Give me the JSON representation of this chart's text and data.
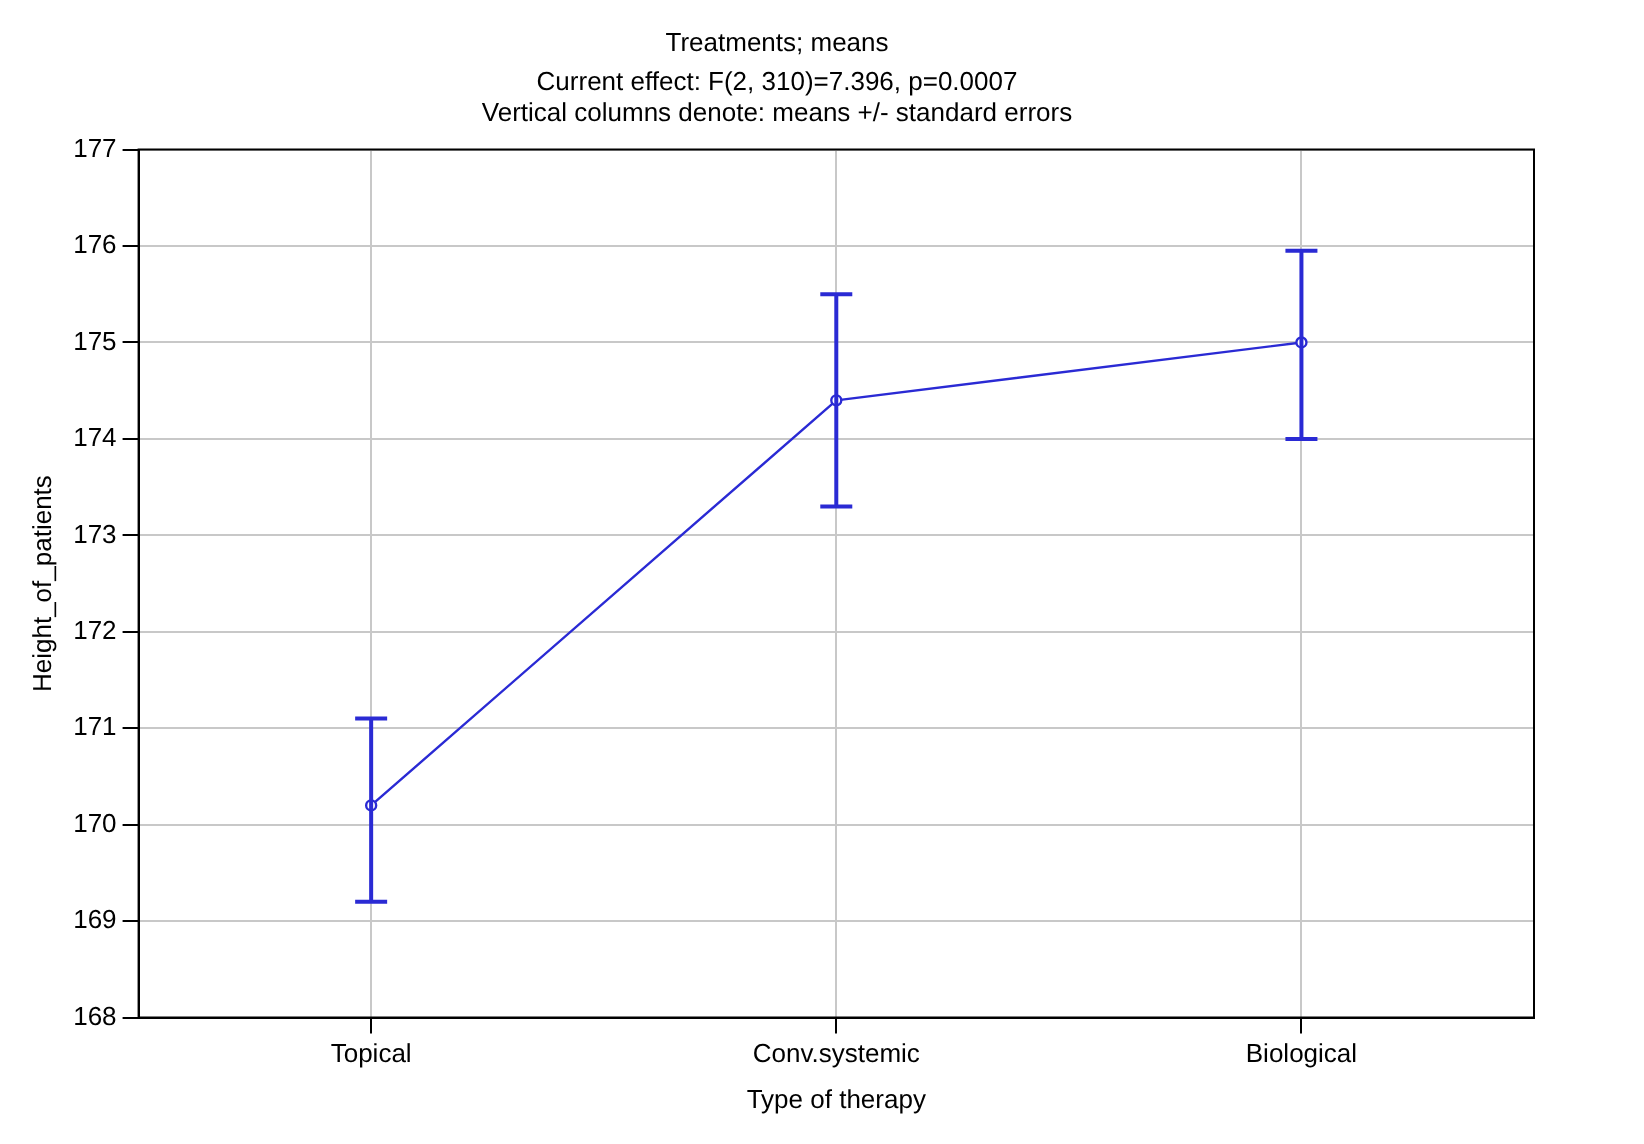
{
  "chart_data": {
    "type": "line",
    "title": "Treatments; means",
    "subtitle": "Current effect: F(2, 310)=7.396, p=0.0007",
    "annotations": [
      "Vertical columns denote: means +/- standard errors"
    ],
    "xlabel": "Type of therapy",
    "ylabel": "Height_of_patients",
    "categories": [
      "Topical",
      "Conv.systemic",
      "Biological"
    ],
    "series": [
      {
        "color": "#2a2ad4",
        "values": [
          170.2,
          174.4,
          175.0
        ],
        "errors": [
          [
            169.2,
            171.1
          ],
          [
            173.3,
            175.5
          ],
          [
            174.0,
            175.95
          ]
        ]
      }
    ],
    "ylim": [
      168,
      177
    ],
    "yticks": [
      168,
      169,
      170,
      171,
      172,
      173,
      174,
      175,
      176,
      177
    ],
    "grid": true,
    "legend": false,
    "marker": "circle",
    "line_style": "solid"
  }
}
